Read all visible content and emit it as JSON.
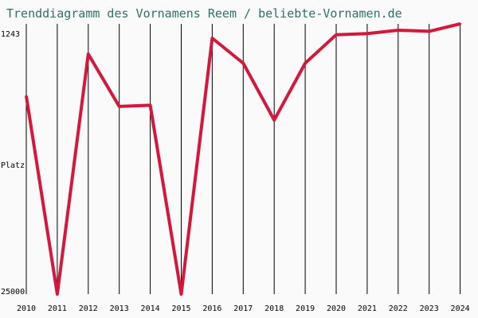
{
  "chart_data": {
    "type": "line",
    "title": "Trenddiagramm des Vornamens Reem / beliebte-Vornamen.de",
    "ylabel": "Platz",
    "y_axis_labels": {
      "top": "1243",
      "bottom": "25000"
    },
    "x": [
      "2010",
      "2011",
      "2012",
      "2013",
      "2014",
      "2015",
      "2016",
      "2017",
      "2018",
      "2019",
      "2020",
      "2021",
      "2022",
      "2023",
      "2024"
    ],
    "series": [
      {
        "values": [
          7600,
          25000,
          3900,
          8500,
          8400,
          25000,
          2500,
          4700,
          9700,
          4700,
          2200,
          2100,
          1800,
          1900,
          1243
        ]
      }
    ],
    "ylim": [
      1243,
      25000
    ],
    "y_direction": "rank (top = best)",
    "grid": "vertical lines per year",
    "colors": {
      "line": "#d4173a",
      "grid": "#000000",
      "title": "#2e6f6a"
    }
  }
}
